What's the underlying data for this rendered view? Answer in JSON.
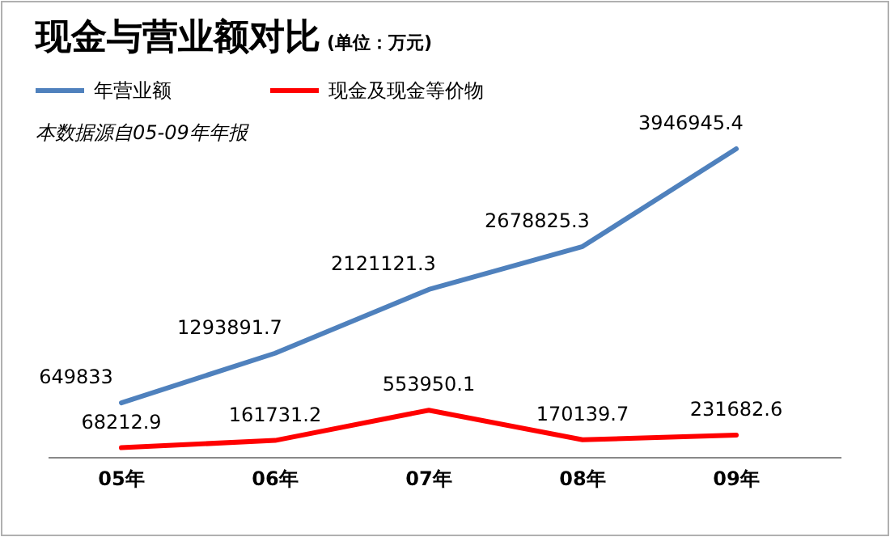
{
  "chart_data": {
    "type": "line",
    "title": "现金与营业额对比",
    "subtitle": "(单位：万元)",
    "annotations": [
      "本数据源自05-09年年报"
    ],
    "categories": [
      "05年",
      "06年",
      "07年",
      "08年",
      "09年"
    ],
    "series": [
      {
        "name": "年营业额",
        "color": "#4f81bd",
        "values": [
          649833,
          1293891.7,
          2121121.3,
          2678825.3,
          3946945.4
        ]
      },
      {
        "name": "现金及现金等价物",
        "color": "#ff0000",
        "values": [
          68212.9,
          161731.2,
          553950.1,
          170139.7,
          231682.6
        ]
      }
    ],
    "data_labels": true,
    "legend": "top left",
    "marker": "none",
    "line_style": "solid",
    "grid": false
  }
}
